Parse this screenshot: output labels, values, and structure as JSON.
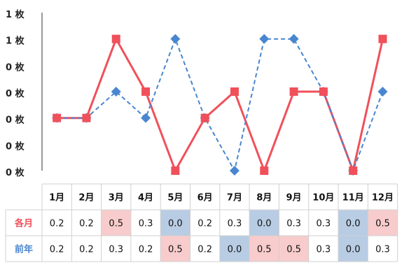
{
  "chart_data": {
    "type": "line",
    "categories": [
      "1月",
      "2月",
      "3月",
      "4月",
      "5月",
      "6月",
      "7月",
      "8月",
      "9月",
      "10月",
      "11月",
      "12月"
    ],
    "y_tick_labels": [
      "1 枚",
      "1 枚",
      "0 枚",
      "0 枚",
      "0 枚",
      "0 枚",
      "0 枚"
    ],
    "ylim": [
      0,
      0.6
    ],
    "grid": false,
    "series": [
      {
        "name": "各月",
        "color": "#f0505a",
        "line": "solid",
        "marker": "square",
        "values": [
          0.2,
          0.2,
          0.5,
          0.3,
          0.0,
          0.2,
          0.3,
          0.0,
          0.3,
          0.3,
          0.0,
          0.5
        ]
      },
      {
        "name": "前年",
        "color": "#4a86d0",
        "line": "dashed",
        "marker": "diamond",
        "values": [
          0.2,
          0.2,
          0.3,
          0.2,
          0.5,
          0.2,
          0.0,
          0.5,
          0.5,
          0.3,
          0.0,
          0.3
        ]
      }
    ],
    "table": {
      "rows": [
        {
          "label": "各月",
          "label_color": "#f0505a",
          "cells": [
            "0.2",
            "0.2",
            "0.5",
            "0.3",
            "0.0",
            "0.2",
            "0.3",
            "0.0",
            "0.3",
            "0.3",
            "0.0",
            "0.5"
          ]
        },
        {
          "label": "前年",
          "label_color": "#4a86d0",
          "cells": [
            "0.2",
            "0.2",
            "0.3",
            "0.2",
            "0.5",
            "0.2",
            "0.0",
            "0.5",
            "0.5",
            "0.3",
            "0.0",
            "0.3"
          ]
        }
      ],
      "high_color": "#f8cccc",
      "low_color": "#b8cce4",
      "grid_color": "#d0d0d0"
    }
  }
}
